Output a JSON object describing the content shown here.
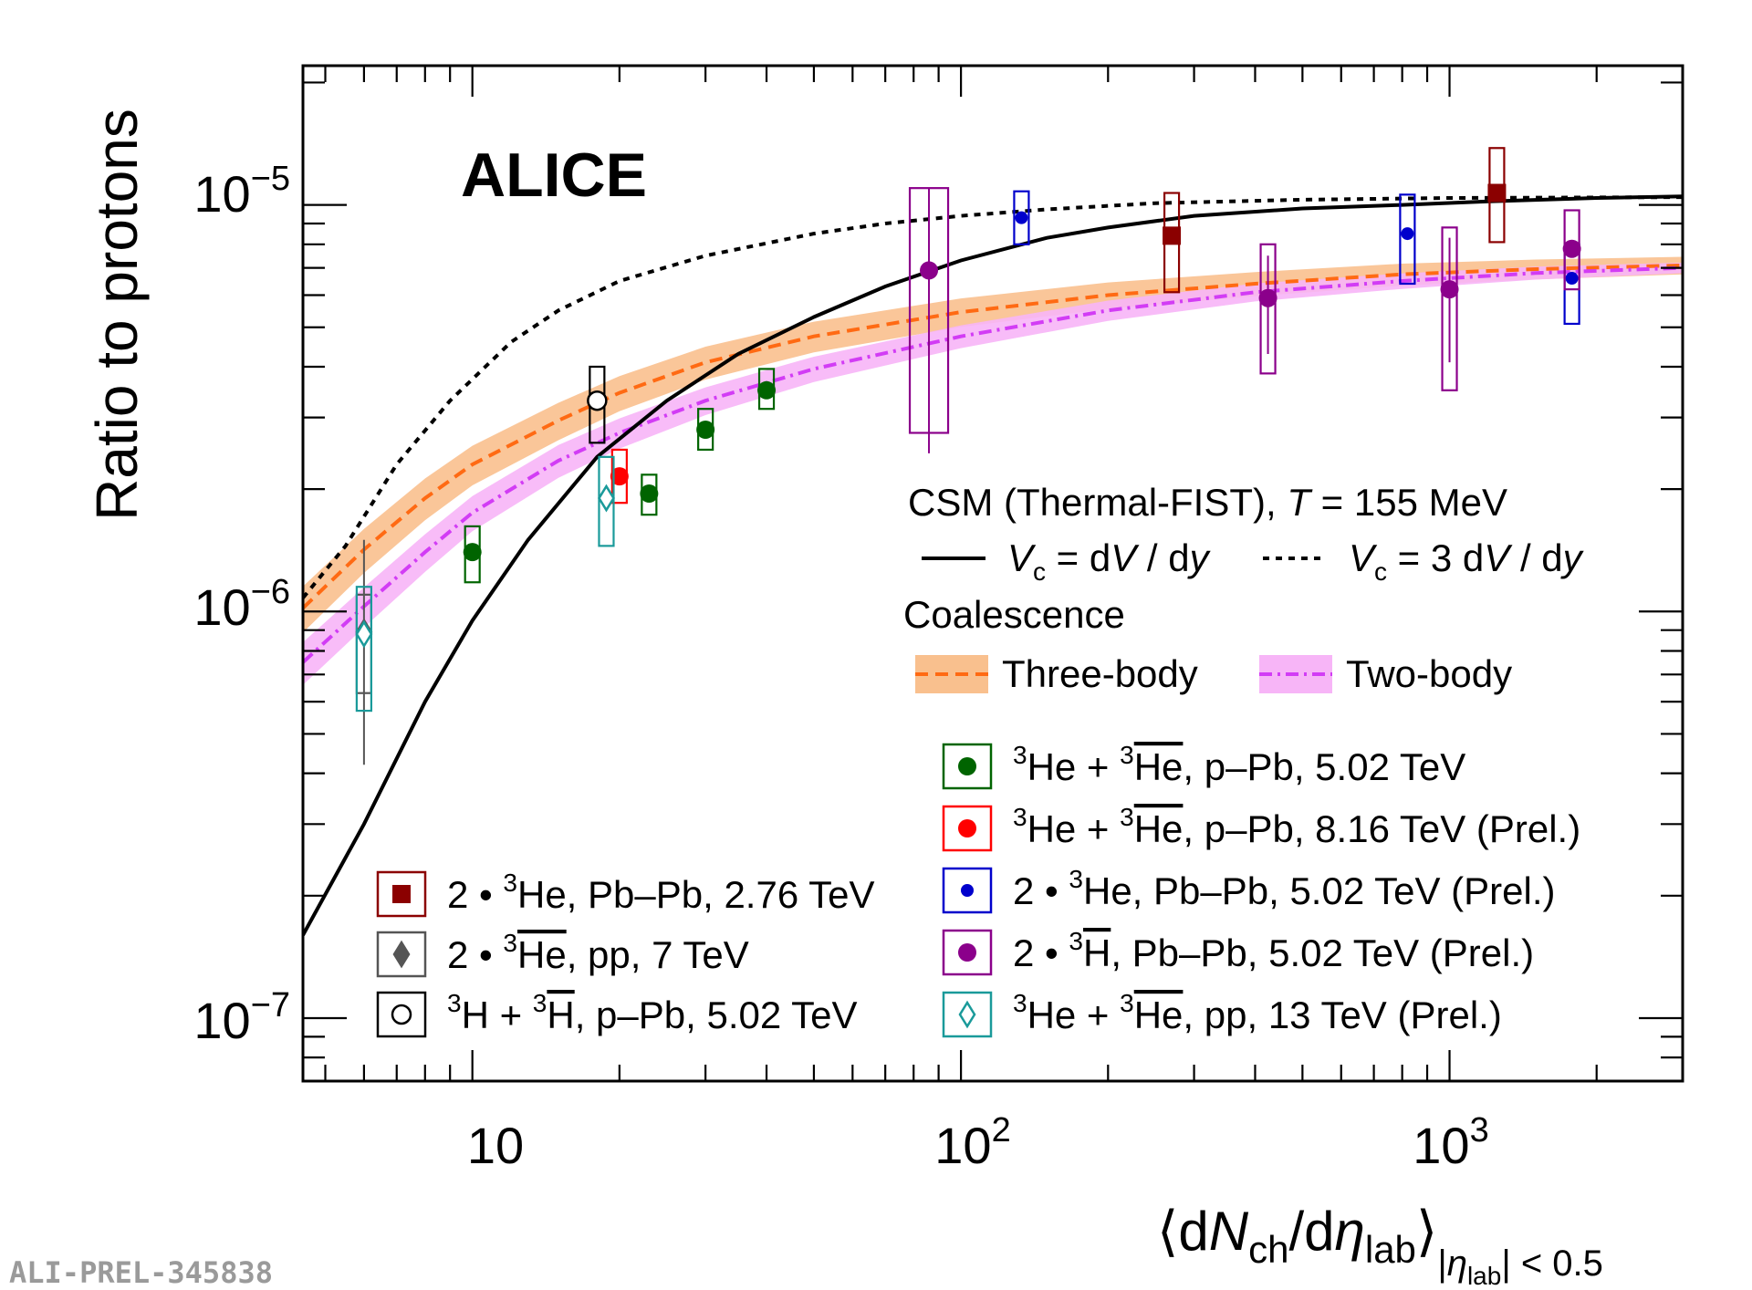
{
  "chart_data": {
    "type": "scatter",
    "logo": "ALICE",
    "watermark": "ALI-PREL-345838",
    "xlabel": {
      "open": "⟨",
      "d1": "d",
      "N": "N",
      "ch": "ch",
      "slash": "/d",
      "eta": "η",
      "lab": "lab",
      "close": "⟩",
      "sub_open": "|",
      "sub_eta": "η",
      "sub_lab": "lab",
      "sub_close": "| < 0.5"
    },
    "ylabel": "Ratio to protons",
    "xscale": "log",
    "yscale": "log",
    "xlim": [
      4.5,
      3000
    ],
    "ylim": [
      7e-08,
      2.2e-05
    ],
    "x_tick_labels": [
      {
        "value": 10,
        "base": "10",
        "exp": ""
      },
      {
        "value": 100,
        "base": "10",
        "exp": "2"
      },
      {
        "value": 1000,
        "base": "10",
        "exp": "3"
      }
    ],
    "y_tick_labels": [
      {
        "value": 1e-05,
        "base": "10",
        "exp": "−5"
      },
      {
        "value": 1e-06,
        "base": "10",
        "exp": "−6"
      },
      {
        "value": 1e-07,
        "base": "10",
        "exp": "−7"
      }
    ],
    "models": {
      "title_a": "CSM (Thermal-FIST), ",
      "title_T": "T",
      "title_b": " = 155 MeV",
      "coalescence_title": "Coalescence",
      "curves": [
        {
          "id": "csm-vc1",
          "label_V": "V",
          "label_sub": "c",
          "label_rest": " = d",
          "label_V2": "V",
          "label_end": " / d",
          "label_y": "y",
          "color": "#000000",
          "dash": "solid",
          "points": [
            [
              4.5,
              1.6e-07
            ],
            [
              6,
              3e-07
            ],
            [
              8,
              6e-07
            ],
            [
              10,
              9.5e-07
            ],
            [
              13,
              1.5e-06
            ],
            [
              18,
              2.4e-06
            ],
            [
              25,
              3.3e-06
            ],
            [
              35,
              4.3e-06
            ],
            [
              50,
              5.3e-06
            ],
            [
              70,
              6.3e-06
            ],
            [
              100,
              7.3e-06
            ],
            [
              150,
              8.3e-06
            ],
            [
              200,
              8.8e-06
            ],
            [
              300,
              9.4e-06
            ],
            [
              500,
              9.8e-06
            ],
            [
              800,
              1e-05
            ],
            [
              1200,
              1.02e-05
            ],
            [
              2000,
              1.04e-05
            ],
            [
              3000,
              1.05e-05
            ]
          ]
        },
        {
          "id": "csm-vc3",
          "label_V": "V",
          "label_sub": "c",
          "label_rest": " = 3 d",
          "label_V2": "V",
          "label_end": " / d",
          "label_y": "y",
          "color": "#000000",
          "dash": "dotted",
          "points": [
            [
              4.5,
              1.08e-06
            ],
            [
              5.5,
              1.45e-06
            ],
            [
              7,
              2.3e-06
            ],
            [
              9,
              3.3e-06
            ],
            [
              12,
              4.6e-06
            ],
            [
              15,
              5.5e-06
            ],
            [
              20,
              6.5e-06
            ],
            [
              30,
              7.5e-06
            ],
            [
              50,
              8.5e-06
            ],
            [
              70,
              9e-06
            ],
            [
              100,
              9.4e-06
            ],
            [
              150,
              9.75e-06
            ],
            [
              250,
              1.01e-05
            ],
            [
              500,
              1.03e-05
            ],
            [
              1000,
              1.04e-05
            ],
            [
              3000,
              1.045e-05
            ]
          ]
        }
      ],
      "bands": [
        {
          "id": "three-body",
          "label": "Three-body",
          "line_color": "#ff6a13",
          "band_color": "#f9c08e",
          "dash": "dashed",
          "points": [
            [
              4.5,
              1.02e-06
            ],
            [
              6,
              1.42e-06
            ],
            [
              8,
              1.9e-06
            ],
            [
              10,
              2.3e-06
            ],
            [
              15,
              2.95e-06
            ],
            [
              20,
              3.45e-06
            ],
            [
              30,
              4.1e-06
            ],
            [
              50,
              4.75e-06
            ],
            [
              100,
              5.45e-06
            ],
            [
              200,
              6e-06
            ],
            [
              400,
              6.4e-06
            ],
            [
              800,
              6.75e-06
            ],
            [
              1500,
              6.95e-06
            ],
            [
              3000,
              7.1e-06
            ]
          ],
          "rel_half_width": [
            0.13,
            0.05
          ]
        },
        {
          "id": "two-body",
          "label": "Two-body",
          "line_color": "#d23cf5",
          "band_color": "#f7b5f7",
          "dash": "dashdot",
          "points": [
            [
              4.5,
              7.5e-07
            ],
            [
              6,
              1.03e-06
            ],
            [
              8,
              1.4e-06
            ],
            [
              10,
              1.75e-06
            ],
            [
              15,
              2.35e-06
            ],
            [
              20,
              2.75e-06
            ],
            [
              30,
              3.3e-06
            ],
            [
              50,
              3.95e-06
            ],
            [
              100,
              4.75e-06
            ],
            [
              200,
              5.5e-06
            ],
            [
              400,
              6.1e-06
            ],
            [
              800,
              6.5e-06
            ],
            [
              1500,
              6.8e-06
            ],
            [
              3000,
              7e-06
            ]
          ],
          "rel_half_width": [
            0.12,
            0.03
          ]
        }
      ]
    },
    "series": [
      {
        "id": "he3-pbpb-276",
        "label_a": "2 • ",
        "label_sup": "3",
        "label_b": "He, Pb–Pb, 2.76 TeV",
        "bar_sup": "",
        "bar_text": "",
        "label_c": "",
        "marker": "square",
        "color": "#8b0000",
        "points": [
          {
            "x": 270,
            "y": 8.4e-06,
            "sys_lo": 6.1e-06,
            "sys_hi": 1.07e-05
          },
          {
            "x": 1250,
            "y": 1.07e-05,
            "sys_lo": 8.1e-06,
            "sys_hi": 1.38e-05
          }
        ]
      },
      {
        "id": "he3bar-pp-7",
        "label_a": "2 • ",
        "label_sup": "3",
        "label_b": "",
        "bar_sup": "",
        "bar_text": "He",
        "label_c": ", pp, 7 TeV",
        "marker": "diamond",
        "color": "#555555",
        "points": [
          {
            "x": 6,
            "y": 8.9e-07,
            "sys_lo": 6.3e-07,
            "sys_hi": 1.1e-06,
            "stat_lo": 4.2e-07,
            "stat_hi": 1.5e-06
          }
        ]
      },
      {
        "id": "h3-ppb-502",
        "label_a": "",
        "label_sup": "3",
        "label_b": "H + ",
        "bar_sup": "3",
        "bar_text": "H",
        "label_c": ", p–Pb, 5.02 TeV",
        "marker": "circle-open",
        "color": "#000000",
        "points": [
          {
            "x": 18,
            "y": 3.3e-06,
            "sys_lo": 2.6e-06,
            "sys_hi": 4e-06
          }
        ]
      },
      {
        "id": "he3-ppb-502",
        "label_a": "",
        "label_sup": "3",
        "label_b": "He + ",
        "bar_sup": "3",
        "bar_text": "He",
        "label_c": ", p–Pb, 5.02 TeV",
        "marker": "circle",
        "color": "#006400",
        "points": [
          {
            "x": 10,
            "y": 1.4e-06,
            "sys_lo": 1.18e-06,
            "sys_hi": 1.62e-06
          },
          {
            "x": 23,
            "y": 1.95e-06,
            "sys_lo": 1.73e-06,
            "sys_hi": 2.17e-06
          },
          {
            "x": 30,
            "y": 2.8e-06,
            "sys_lo": 2.5e-06,
            "sys_hi": 3.15e-06
          },
          {
            "x": 40,
            "y": 3.5e-06,
            "sys_lo": 3.15e-06,
            "sys_hi": 3.95e-06
          }
        ]
      },
      {
        "id": "he3-ppb-816",
        "label_a": "",
        "label_sup": "3",
        "label_b": "He + ",
        "bar_sup": "3",
        "bar_text": "He",
        "label_c": ", p–Pb, 8.16 TeV (Prel.)",
        "marker": "circle",
        "color": "#ff0000",
        "points": [
          {
            "x": 20,
            "y": 2.15e-06,
            "sys_lo": 1.85e-06,
            "sys_hi": 2.5e-06
          }
        ]
      },
      {
        "id": "he3-pbpb-502",
        "label_a": "2 • ",
        "label_sup": "3",
        "label_b": "He, Pb–Pb, 5.02 TeV (Prel.)",
        "bar_sup": "",
        "bar_text": "",
        "label_c": "",
        "marker": "circle-small",
        "color": "#0000cc",
        "points": [
          {
            "x": 133,
            "y": 9.3e-06,
            "sys_lo": 8e-06,
            "sys_hi": 1.08e-05
          },
          {
            "x": 820,
            "y": 8.5e-06,
            "sys_lo": 6.4e-06,
            "sys_hi": 1.06e-05
          },
          {
            "x": 1780,
            "y": 6.6e-06,
            "sys_lo": 5.1e-06,
            "sys_hi": 8e-06
          }
        ]
      },
      {
        "id": "h3-pbpb-502",
        "label_a": "2 • ",
        "label_sup": "3",
        "label_b": "",
        "bar_sup": "",
        "bar_text": "H",
        "label_c": ", Pb–Pb, 5.02 TeV (Prel.)",
        "marker": "circle",
        "color": "#8b008b",
        "points": [
          {
            "x": 86,
            "y": 6.9e-06,
            "sys_lo": 2.75e-06,
            "sys_hi": 1.1e-05,
            "stat_lo": 2.45e-06,
            "stat_hi": 1.1e-05
          },
          {
            "x": 425,
            "y": 5.9e-06,
            "sys_lo": 3.85e-06,
            "sys_hi": 8e-06,
            "stat_lo": 4.3e-06,
            "stat_hi": 7.5e-06
          },
          {
            "x": 1000,
            "y": 6.2e-06,
            "sys_lo": 3.5e-06,
            "sys_hi": 8.8e-06,
            "stat_lo": 4.1e-06,
            "stat_hi": 8.3e-06
          },
          {
            "x": 1780,
            "y": 7.8e-06,
            "sys_lo": 6.2e-06,
            "sys_hi": 9.7e-06
          }
        ]
      },
      {
        "id": "he3-pp-13",
        "label_a": "",
        "label_sup": "3",
        "label_b": "He + ",
        "bar_sup": "3",
        "bar_text": "He",
        "label_c": ", pp, 13 TeV (Prel.)",
        "marker": "diamond-open",
        "color": "#1a9a9a",
        "points": [
          {
            "x": 6,
            "y": 8.8e-07,
            "sys_lo": 5.7e-07,
            "sys_hi": 1.15e-06
          },
          {
            "x": 18.8,
            "y": 1.9e-06,
            "sys_lo": 1.45e-06,
            "sys_hi": 2.4e-06
          }
        ]
      }
    ]
  }
}
